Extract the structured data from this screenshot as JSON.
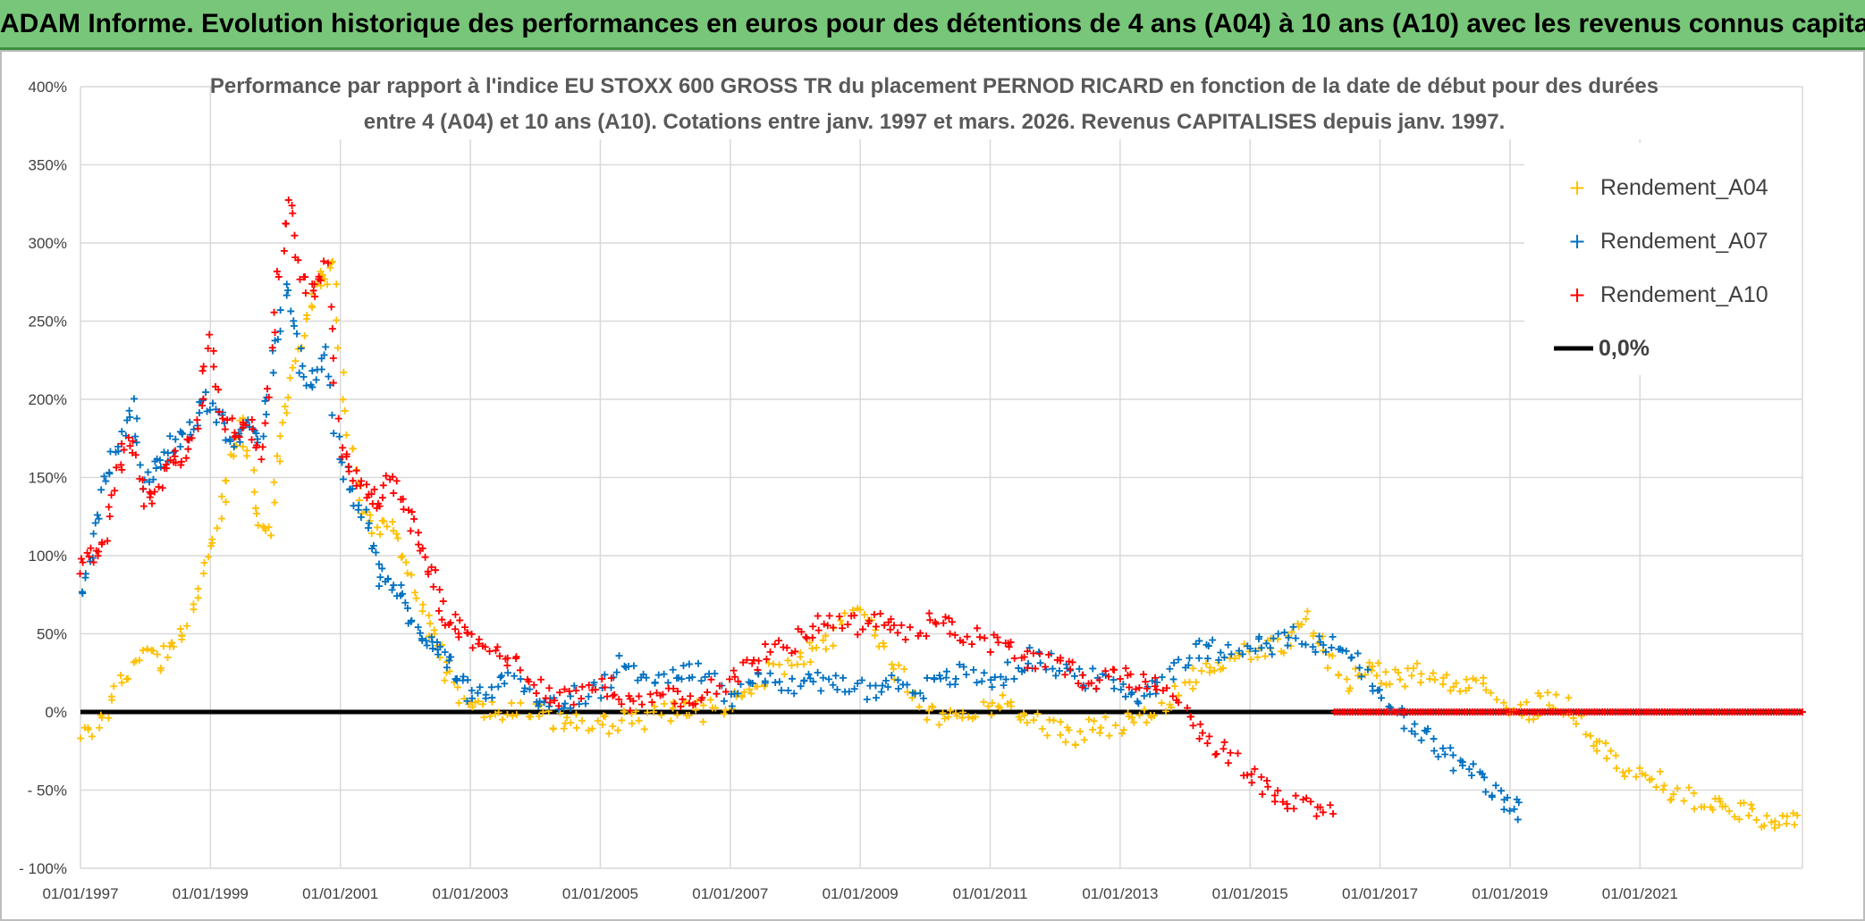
{
  "banner": {
    "title": "ADAM Informe. Evolution historique des performances en euros pour des détentions de 4 ans (A04) à 10 ans (A10) avec les revenus connus capitalisés"
  },
  "colors": {
    "banner_bg": "#78c679",
    "A04": "#ffc000",
    "A07": "#0070c0",
    "A10": "#ff0000",
    "zero_line": "#000000",
    "grid": "#d9d9d9"
  },
  "chart_data": {
    "type": "scatter",
    "title_lines": [
      "Performance par rapport à l'indice EU STOXX 600 GROSS TR  du placement PERNOD RICARD en fonction de la date de début pour des durées",
      "entre 4 (A04) et 10 ans (A10). Cotations entre janv. 1997 et mars. 2026. Revenus CAPITALISES depuis janv. 1997."
    ],
    "xlabel": "",
    "ylabel": "",
    "x_range": [
      1997.0,
      2023.5
    ],
    "ylim": [
      -100,
      400
    ],
    "y_ticks": [
      -100,
      -50,
      0,
      50,
      100,
      150,
      200,
      250,
      300,
      350,
      400
    ],
    "y_tick_labels": [
      "- 100%",
      "- 50%",
      "0%",
      "50%",
      "100%",
      "150%",
      "200%",
      "250%",
      "300%",
      "350%",
      "400%"
    ],
    "x_ticks": [
      1997,
      1999,
      2001,
      2003,
      2005,
      2007,
      2009,
      2011,
      2013,
      2015,
      2017,
      2019,
      2021
    ],
    "x_tick_labels": [
      "01/01/1997",
      "01/01/1999",
      "01/01/2001",
      "01/01/2003",
      "01/01/2005",
      "01/01/2007",
      "01/01/2009",
      "01/01/2011",
      "01/01/2013",
      "01/01/2015",
      "01/01/2017",
      "01/01/2019",
      "01/01/2021"
    ],
    "legend_position": "top-right",
    "series": [
      {
        "name": "Rendement_A04",
        "color": "#ffc000",
        "marker": "+",
        "x": [
          1997.0,
          1997.3,
          1997.6,
          1997.9,
          1998.2,
          1998.4,
          1998.6,
          1998.9,
          1999.1,
          1999.3,
          1999.5,
          1999.7,
          1999.9,
          2000.1,
          2000.3,
          2000.5,
          2000.7,
          2000.9,
          2001.1,
          2001.3,
          2001.5,
          2001.8,
          2002.0,
          2002.3,
          2002.5,
          2002.7,
          2003.0,
          2003.3,
          2003.6,
          2004.0,
          2004.3,
          2004.6,
          2005.0,
          2005.3,
          2005.6,
          2006.0,
          2006.3,
          2006.6,
          2007.0,
          2007.3,
          2007.6,
          2008.0,
          2008.3,
          2008.6,
          2009.0,
          2009.3,
          2009.6,
          2010.0,
          2010.3,
          2010.6,
          2011.0,
          2011.3,
          2011.6,
          2012.0,
          2012.3,
          2012.6,
          2013.0,
          2013.3,
          2013.6,
          2014.0,
          2014.3,
          2014.6,
          2015.0,
          2015.3,
          2015.6,
          2015.9,
          2016.2,
          2016.5,
          2016.8,
          2017.0,
          2017.3,
          2017.6,
          2018.0,
          2018.3,
          2018.6,
          2019.0,
          2019.3,
          2019.6,
          2020.0,
          2020.3,
          2020.6,
          2021.0,
          2021.3,
          2021.6,
          2022.0,
          2022.3,
          2022.6,
          2022.9,
          2023.2,
          2023.5
        ],
        "y": [
          -18,
          -5,
          15,
          40,
          32,
          40,
          55,
          85,
          120,
          160,
          185,
          130,
          110,
          180,
          215,
          255,
          275,
          285,
          190,
          140,
          120,
          115,
          100,
          60,
          40,
          20,
          0,
          0,
          2,
          0,
          -5,
          -5,
          -10,
          -5,
          -5,
          0,
          0,
          0,
          5,
          15,
          25,
          30,
          40,
          50,
          65,
          40,
          25,
          0,
          -5,
          0,
          5,
          5,
          -5,
          -10,
          -15,
          -10,
          -10,
          -5,
          0,
          15,
          30,
          35,
          40,
          42,
          45,
          60,
          35,
          20,
          25,
          25,
          20,
          25,
          20,
          20,
          22,
          5,
          0,
          10,
          0,
          -20,
          -30,
          -40,
          -45,
          -55,
          -55,
          -60,
          -65,
          -68,
          -70,
          -72
        ]
      },
      {
        "name": "Rendement_A07",
        "color": "#0070c0",
        "marker": "+",
        "x": [
          1997.0,
          1997.2,
          1997.4,
          1997.6,
          1997.8,
          1998.0,
          1998.2,
          1998.4,
          1998.6,
          1998.8,
          1999.0,
          1999.2,
          1999.4,
          1999.6,
          1999.8,
          2000.0,
          2000.2,
          2000.4,
          2000.6,
          2000.8,
          2001.0,
          2001.2,
          2001.4,
          2001.6,
          2001.8,
          2002.0,
          2002.2,
          2002.4,
          2002.6,
          2002.8,
          2003.0,
          2003.3,
          2003.6,
          2004.0,
          2004.3,
          2004.6,
          2005.0,
          2005.3,
          2005.6,
          2006.0,
          2006.3,
          2006.6,
          2007.0,
          2007.3,
          2007.6,
          2008.0,
          2008.3,
          2008.6,
          2009.0,
          2009.3,
          2009.6,
          2010.0,
          2010.3,
          2010.6,
          2011.0,
          2011.3,
          2011.6,
          2012.0,
          2012.3,
          2012.6,
          2013.0,
          2013.3,
          2013.6,
          2014.0,
          2014.3,
          2014.6,
          2015.0,
          2015.3,
          2015.6,
          2016.0,
          2016.3,
          2016.6,
          2016.9,
          2017.2,
          2017.5,
          2017.8,
          2018.1,
          2018.4,
          2018.7,
          2019.0,
          2019.2
        ],
        "y": [
          75,
          110,
          150,
          175,
          200,
          140,
          160,
          170,
          175,
          190,
          200,
          185,
          170,
          190,
          175,
          240,
          270,
          220,
          210,
          230,
          160,
          140,
          120,
          85,
          85,
          70,
          50,
          45,
          35,
          25,
          10,
          15,
          20,
          10,
          5,
          10,
          15,
          30,
          25,
          20,
          25,
          25,
          10,
          20,
          25,
          15,
          20,
          20,
          15,
          15,
          20,
          15,
          20,
          25,
          20,
          25,
          35,
          30,
          25,
          20,
          15,
          10,
          20,
          35,
          40,
          40,
          45,
          40,
          50,
          40,
          45,
          35,
          15,
          0,
          -10,
          -20,
          -30,
          -40,
          -50,
          -60,
          -65
        ]
      },
      {
        "name": "Rendement_A10",
        "color": "#ff0000",
        "marker": "+",
        "x": [
          1997.0,
          1997.2,
          1997.4,
          1997.6,
          1997.8,
          1998.0,
          1998.2,
          1998.4,
          1998.6,
          1998.8,
          1999.0,
          1999.2,
          1999.4,
          1999.6,
          1999.8,
          2000.0,
          2000.2,
          2000.4,
          2000.6,
          2000.8,
          2001.0,
          2001.2,
          2001.4,
          2001.6,
          2001.8,
          2002.0,
          2002.2,
          2002.4,
          2002.6,
          2002.8,
          2003.0,
          2003.3,
          2003.6,
          2004.0,
          2004.3,
          2004.6,
          2005.0,
          2005.3,
          2005.6,
          2006.0,
          2006.3,
          2006.6,
          2007.0,
          2007.3,
          2007.6,
          2008.0,
          2008.3,
          2008.6,
          2009.0,
          2009.3,
          2009.6,
          2010.0,
          2010.3,
          2010.6,
          2011.0,
          2011.3,
          2011.6,
          2012.0,
          2012.3,
          2012.6,
          2013.0,
          2013.3,
          2013.6,
          2014.0,
          2014.3,
          2014.6,
          2015.0,
          2015.3,
          2015.6,
          2016.0,
          2016.3
        ],
        "y": [
          95,
          100,
          115,
          160,
          175,
          130,
          145,
          160,
          165,
          185,
          240,
          190,
          175,
          180,
          165,
          260,
          330,
          280,
          270,
          285,
          170,
          150,
          140,
          135,
          150,
          130,
          110,
          90,
          60,
          55,
          45,
          40,
          35,
          20,
          10,
          10,
          20,
          10,
          5,
          10,
          5,
          15,
          20,
          30,
          40,
          45,
          55,
          60,
          55,
          60,
          50,
          55,
          60,
          50,
          45,
          40,
          35,
          30,
          25,
          20,
          25,
          20,
          15,
          5,
          -15,
          -25,
          -40,
          -50,
          -55,
          -60,
          -62
        ]
      }
    ],
    "reference_line": {
      "name": "0,0%",
      "y": 0,
      "color": "#000000"
    }
  }
}
